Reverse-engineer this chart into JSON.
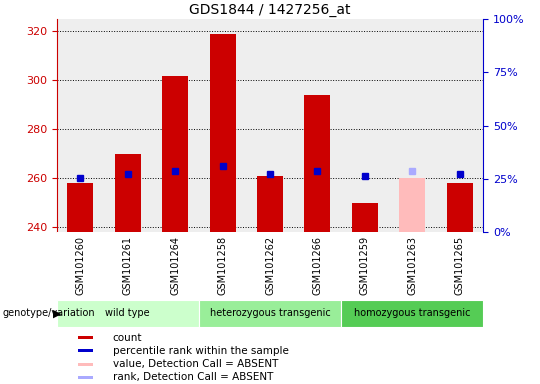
{
  "title": "GDS1844 / 1427256_at",
  "samples": [
    "GSM101260",
    "GSM101261",
    "GSM101264",
    "GSM101258",
    "GSM101262",
    "GSM101266",
    "GSM101259",
    "GSM101263",
    "GSM101265"
  ],
  "counts": [
    258,
    270,
    302,
    319,
    261,
    294,
    250,
    260,
    258
  ],
  "ranks": [
    260,
    262,
    263,
    265,
    262,
    263,
    261,
    263,
    262
  ],
  "absent_flags": [
    false,
    false,
    false,
    false,
    false,
    false,
    false,
    true,
    false
  ],
  "groups": [
    {
      "label": "wild type",
      "start": 0,
      "end": 2,
      "color": "#ccffcc"
    },
    {
      "label": "heterozygous transgenic",
      "start": 3,
      "end": 5,
      "color": "#99ee99"
    },
    {
      "label": "homozygous transgenic",
      "start": 6,
      "end": 8,
      "color": "#55cc55"
    }
  ],
  "ylim_left": [
    238,
    325
  ],
  "ylim_right": [
    0,
    100
  ],
  "yticks_left": [
    240,
    260,
    280,
    300,
    320
  ],
  "yticks_right": [
    0,
    25,
    50,
    75,
    100
  ],
  "bar_color": "#cc0000",
  "absent_bar_color": "#ffbbbb",
  "rank_color": "#0000cc",
  "absent_rank_color": "#aaaaff",
  "bar_width": 0.55,
  "background_color": "#ffffff",
  "grid_color": "#000000",
  "label_bg": "#cccccc",
  "legend_items": [
    {
      "label": "count",
      "color": "#cc0000"
    },
    {
      "label": "percentile rank within the sample",
      "color": "#0000cc"
    },
    {
      "label": "value, Detection Call = ABSENT",
      "color": "#ffbbbb"
    },
    {
      "label": "rank, Detection Call = ABSENT",
      "color": "#aaaaff"
    }
  ]
}
